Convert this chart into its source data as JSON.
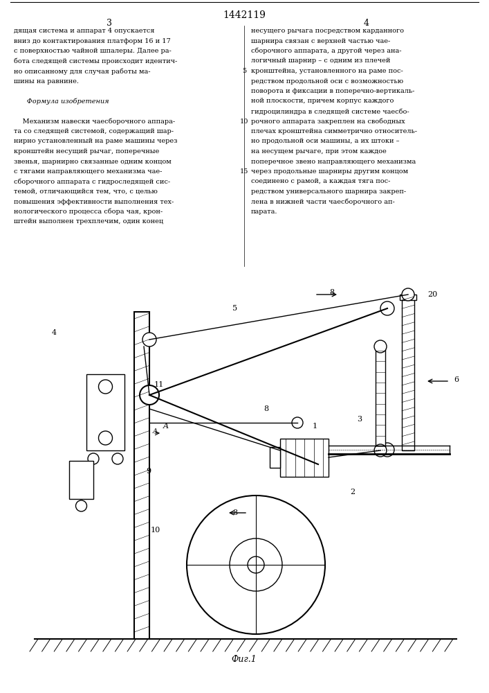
{
  "patent_number": "1442119",
  "page_left": "3",
  "page_right": "4",
  "bg_color": "#ffffff",
  "line_color": "#000000",
  "fig_caption": "Фиг.1"
}
